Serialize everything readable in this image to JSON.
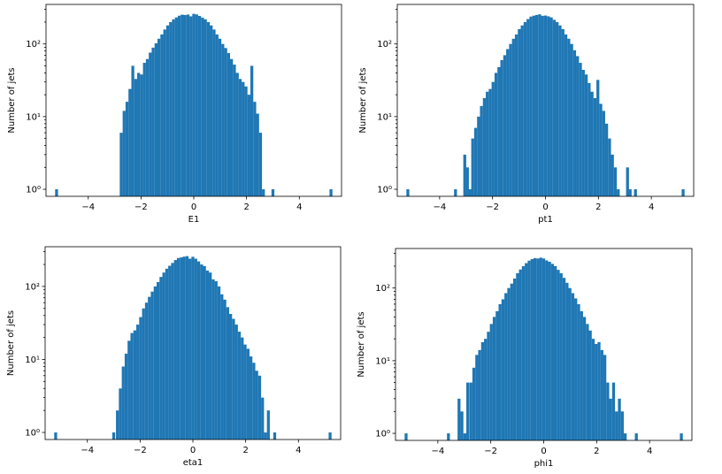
{
  "chart_data": [
    {
      "type": "bar",
      "xlabel": "E1",
      "ylabel": "Number of jets",
      "yscale": "log",
      "ylim": [
        0.8,
        350
      ],
      "xlim": [
        -5.6,
        5.6
      ],
      "xticks": [
        -4,
        -2,
        0,
        2,
        4
      ],
      "xtick_labels": [
        "−4",
        "−2",
        "0",
        "2",
        "4"
      ],
      "yticks": [
        1,
        10,
        100
      ],
      "ytick_labels": [
        "10⁰",
        "10¹",
        "10²"
      ],
      "bin_width": 0.11,
      "bar_color": "#1f77b4",
      "series": [
        {
          "x": [
            -5.2,
            -2.75,
            -2.64,
            -2.53,
            -2.42,
            -2.31,
            -2.2,
            -2.09,
            -1.98,
            -1.87,
            -1.76,
            -1.65,
            -1.54,
            -1.43,
            -1.32,
            -1.21,
            -1.1,
            -0.99,
            -0.88,
            -0.77,
            -0.66,
            -0.55,
            -0.44,
            -0.33,
            -0.22,
            -0.11,
            0,
            0.11,
            0.22,
            0.33,
            0.44,
            0.55,
            0.66,
            0.77,
            0.88,
            0.99,
            1.1,
            1.21,
            1.32,
            1.43,
            1.54,
            1.65,
            1.76,
            1.87,
            1.98,
            2.09,
            2.2,
            2.31,
            2.42,
            2.53,
            2.64,
            3.0,
            5.2
          ],
          "values": [
            1,
            6,
            12,
            16,
            24,
            50,
            33,
            40,
            38,
            55,
            62,
            76,
            89,
            102,
            118,
            135,
            158,
            180,
            200,
            218,
            232,
            245,
            253,
            250,
            254,
            240,
            260,
            255,
            243,
            230,
            218,
            200,
            180,
            158,
            135,
            118,
            100,
            88,
            75,
            62,
            52,
            40,
            33,
            30,
            26,
            20,
            50,
            16,
            11,
            6,
            1,
            1,
            1
          ]
        }
      ]
    },
    {
      "type": "bar",
      "xlabel": "pt1",
      "ylabel": "Number of jets",
      "yscale": "log",
      "ylim": [
        0.8,
        350
      ],
      "xlim": [
        -5.6,
        5.6
      ],
      "xticks": [
        -4,
        -2,
        0,
        2,
        4
      ],
      "xtick_labels": [
        "−4",
        "−2",
        "0",
        "2",
        "4"
      ],
      "yticks": [
        1,
        10,
        100
      ],
      "ytick_labels": [
        "10⁰",
        "10¹",
        "10²"
      ],
      "bin_width": 0.11,
      "bar_color": "#1f77b4",
      "series": [
        {
          "x": [
            -5.2,
            -3.4,
            -3.05,
            -2.95,
            -2.85,
            -2.75,
            -2.64,
            -2.53,
            -2.42,
            -2.31,
            -2.2,
            -2.09,
            -1.98,
            -1.87,
            -1.76,
            -1.65,
            -1.54,
            -1.43,
            -1.32,
            -1.21,
            -1.1,
            -0.99,
            -0.88,
            -0.77,
            -0.66,
            -0.55,
            -0.44,
            -0.33,
            -0.22,
            -0.11,
            0,
            0.11,
            0.22,
            0.33,
            0.44,
            0.55,
            0.66,
            0.77,
            0.88,
            0.99,
            1.1,
            1.21,
            1.32,
            1.43,
            1.54,
            1.65,
            1.76,
            1.87,
            1.98,
            2.09,
            2.2,
            2.31,
            2.42,
            2.53,
            2.64,
            2.75,
            3.1,
            3.2,
            3.4,
            5.2
          ],
          "values": [
            1,
            1,
            3,
            2,
            1,
            5,
            7,
            10,
            14,
            18,
            22,
            24,
            30,
            40,
            48,
            60,
            70,
            85,
            100,
            118,
            135,
            160,
            180,
            200,
            220,
            238,
            245,
            250,
            256,
            244,
            246,
            240,
            232,
            215,
            200,
            180,
            160,
            135,
            118,
            100,
            82,
            68,
            55,
            44,
            38,
            29,
            22,
            18,
            32,
            15,
            12,
            8,
            5,
            3,
            2,
            1,
            2,
            1,
            1,
            1
          ]
        }
      ]
    },
    {
      "type": "bar",
      "xlabel": "eta1",
      "ylabel": "Number of jets",
      "yscale": "log",
      "ylim": [
        0.8,
        350
      ],
      "xlim": [
        -5.6,
        5.6
      ],
      "xticks": [
        -4,
        -2,
        0,
        2,
        4
      ],
      "xtick_labels": [
        "−4",
        "−2",
        "0",
        "2",
        "4"
      ],
      "yticks": [
        1,
        10,
        100
      ],
      "ytick_labels": [
        "10⁰",
        "10¹",
        "10²"
      ],
      "bin_width": 0.11,
      "bar_color": "#1f77b4",
      "series": [
        {
          "x": [
            -5.2,
            -3.0,
            -2.86,
            -2.75,
            -2.64,
            -2.53,
            -2.42,
            -2.31,
            -2.2,
            -2.09,
            -1.98,
            -1.87,
            -1.76,
            -1.65,
            -1.54,
            -1.43,
            -1.32,
            -1.21,
            -1.1,
            -0.99,
            -0.88,
            -0.77,
            -0.66,
            -0.55,
            -0.44,
            -0.33,
            -0.22,
            -0.11,
            0,
            0.11,
            0.22,
            0.33,
            0.44,
            0.55,
            0.66,
            0.77,
            0.88,
            0.99,
            1.1,
            1.21,
            1.32,
            1.43,
            1.54,
            1.65,
            1.76,
            1.87,
            1.98,
            2.09,
            2.2,
            2.31,
            2.42,
            2.53,
            2.64,
            2.75,
            2.86,
            3.1,
            5.2
          ],
          "values": [
            1,
            1,
            2,
            4,
            8,
            12,
            18,
            23,
            25,
            30,
            38,
            50,
            60,
            72,
            85,
            100,
            115,
            135,
            155,
            175,
            192,
            210,
            230,
            245,
            250,
            256,
            260,
            240,
            255,
            240,
            220,
            200,
            190,
            165,
            155,
            125,
            118,
            100,
            78,
            66,
            52,
            42,
            36,
            30,
            24,
            20,
            16,
            14,
            11,
            9,
            7,
            6,
            3,
            1,
            2,
            1,
            1
          ]
        }
      ]
    },
    {
      "type": "bar",
      "xlabel": "phi1",
      "ylabel": "Number of jets",
      "yscale": "log",
      "ylim": [
        0.8,
        350
      ],
      "xlim": [
        -5.6,
        5.6
      ],
      "xticks": [
        -4,
        -2,
        0,
        2,
        4
      ],
      "xtick_labels": [
        "−4",
        "−2",
        "0",
        "2",
        "4"
      ],
      "yticks": [
        1,
        10,
        100
      ],
      "ytick_labels": [
        "10⁰",
        "10¹",
        "10²"
      ],
      "bin_width": 0.11,
      "bar_color": "#1f77b4",
      "series": [
        {
          "x": [
            -5.2,
            -3.6,
            -3.2,
            -3.09,
            -2.98,
            -2.87,
            -2.75,
            -2.64,
            -2.53,
            -2.42,
            -2.31,
            -2.2,
            -2.09,
            -1.98,
            -1.87,
            -1.76,
            -1.65,
            -1.54,
            -1.43,
            -1.32,
            -1.21,
            -1.1,
            -0.99,
            -0.88,
            -0.77,
            -0.66,
            -0.55,
            -0.44,
            -0.33,
            -0.22,
            -0.11,
            0,
            0.11,
            0.22,
            0.33,
            0.44,
            0.55,
            0.66,
            0.77,
            0.88,
            0.99,
            1.1,
            1.21,
            1.32,
            1.43,
            1.54,
            1.65,
            1.76,
            1.87,
            1.98,
            2.09,
            2.2,
            2.31,
            2.42,
            2.53,
            2.64,
            2.75,
            2.86,
            2.97,
            3.08,
            3.5,
            5.2
          ],
          "values": [
            1,
            1,
            3,
            2,
            1,
            5,
            5,
            8,
            12,
            14,
            18,
            20,
            25,
            32,
            40,
            48,
            60,
            70,
            85,
            100,
            115,
            135,
            160,
            180,
            200,
            220,
            238,
            250,
            258,
            255,
            262,
            255,
            240,
            230,
            215,
            200,
            178,
            160,
            138,
            118,
            100,
            85,
            72,
            60,
            48,
            40,
            32,
            26,
            20,
            17,
            18,
            14,
            12,
            5,
            3,
            5,
            2,
            3,
            2,
            1,
            1,
            1
          ]
        }
      ]
    }
  ]
}
